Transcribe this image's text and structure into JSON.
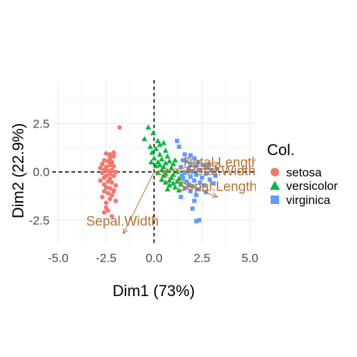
{
  "chart_data": {
    "type": "scatter",
    "xlabel": "Dim1 (73%)",
    "ylabel": "Dim2 (22.9%)",
    "xlim": [
      -5.3,
      5.3
    ],
    "ylim": [
      -3.75,
      4.75
    ],
    "x_ticks": [
      -5.0,
      -2.5,
      0.0,
      2.5,
      5.0
    ],
    "x_tick_labels": [
      "-5.0",
      "-2.5",
      "0.0",
      "2.5",
      "5.0"
    ],
    "y_ticks": [
      -2.5,
      0.0,
      2.5
    ],
    "y_tick_labels": [
      "-2.5",
      "0.0",
      "2.5"
    ],
    "grid": true,
    "reference_lines": {
      "x": 0,
      "y": 0,
      "style": "dashed"
    },
    "legend": {
      "title": "Col.",
      "placement": "right",
      "entries": [
        {
          "label": "setosa",
          "shape": "circle",
          "color": "#F8766D"
        },
        {
          "label": "versicolor",
          "shape": "triangle",
          "color": "#00BA38"
        },
        {
          "label": "virginica",
          "shape": "square",
          "color": "#619CFF"
        }
      ]
    },
    "series": [
      {
        "name": "setosa",
        "shape": "circle",
        "color": "#F8766D",
        "points": [
          [
            -1.8,
            2.3
          ],
          [
            -2.1,
            1.0
          ],
          [
            -2.3,
            0.9
          ],
          [
            -2.5,
            0.95
          ],
          [
            -2.3,
            0.75
          ],
          [
            -2.1,
            0.8
          ],
          [
            -2.6,
            0.6
          ],
          [
            -2.4,
            0.55
          ],
          [
            -2.2,
            0.5
          ],
          [
            -2.7,
            0.4
          ],
          [
            -2.3,
            0.35
          ],
          [
            -2.5,
            0.25
          ],
          [
            -2.1,
            0.3
          ],
          [
            -2.8,
            0.2
          ],
          [
            -2.6,
            0.1
          ],
          [
            -2.2,
            0.1
          ],
          [
            -2.4,
            0.05
          ],
          [
            -2.0,
            0.0
          ],
          [
            -2.7,
            -0.05
          ],
          [
            -2.3,
            -0.1
          ],
          [
            -2.5,
            -0.2
          ],
          [
            -2.1,
            -0.2
          ],
          [
            -2.6,
            -0.3
          ],
          [
            -2.3,
            -0.35
          ],
          [
            -2.8,
            -0.45
          ],
          [
            -2.4,
            -0.5
          ],
          [
            -2.2,
            -0.55
          ],
          [
            -2.6,
            -0.65
          ],
          [
            -2.0,
            -0.7
          ],
          [
            -2.5,
            -0.8
          ],
          [
            -2.3,
            -0.85
          ],
          [
            -2.1,
            -0.95
          ],
          [
            -2.6,
            -1.0
          ],
          [
            -2.4,
            -1.1
          ],
          [
            -2.2,
            -1.2
          ],
          [
            -2.7,
            -1.3
          ],
          [
            -2.3,
            -1.4
          ],
          [
            -2.0,
            -1.5
          ],
          [
            -2.5,
            -1.6
          ],
          [
            -2.4,
            -2.0
          ],
          [
            -2.6,
            -2.1
          ],
          [
            -2.2,
            -2.3
          ],
          [
            -2.5,
            -1.85
          ],
          [
            -2.1,
            -1.0
          ],
          [
            -2.3,
            0.6
          ]
        ]
      },
      {
        "name": "versicolor",
        "shape": "triangle",
        "color": "#00BA38",
        "points": [
          [
            -0.3,
            2.3
          ],
          [
            -0.05,
            2.0
          ],
          [
            -0.5,
            1.7
          ],
          [
            0.2,
            1.6
          ],
          [
            0.5,
            1.5
          ],
          [
            -0.2,
            1.3
          ],
          [
            0.1,
            1.2
          ],
          [
            0.6,
            1.1
          ],
          [
            -0.1,
            1.0
          ],
          [
            0.3,
            0.9
          ],
          [
            0.7,
            0.8
          ],
          [
            0.0,
            0.7
          ],
          [
            0.4,
            0.65
          ],
          [
            0.8,
            0.55
          ],
          [
            0.2,
            0.5
          ],
          [
            0.6,
            0.45
          ],
          [
            1.0,
            0.4
          ],
          [
            0.3,
            0.35
          ],
          [
            0.1,
            0.3
          ],
          [
            0.5,
            0.25
          ],
          [
            0.9,
            0.2
          ],
          [
            0.4,
            0.1
          ],
          [
            0.7,
            0.05
          ],
          [
            1.2,
            0.0
          ],
          [
            0.2,
            -0.05
          ],
          [
            0.6,
            -0.1
          ],
          [
            1.0,
            -0.15
          ],
          [
            0.5,
            -0.2
          ],
          [
            0.9,
            -0.3
          ],
          [
            1.3,
            -0.35
          ],
          [
            0.4,
            -0.4
          ],
          [
            0.8,
            -0.45
          ],
          [
            1.2,
            -0.5
          ],
          [
            0.6,
            -0.55
          ],
          [
            1.0,
            -0.6
          ],
          [
            1.4,
            -0.65
          ],
          [
            0.8,
            -0.7
          ],
          [
            1.1,
            -0.8
          ],
          [
            0.7,
            -0.9
          ],
          [
            1.3,
            -0.95
          ],
          [
            0.9,
            -0.3
          ],
          [
            1.1,
            0.6
          ],
          [
            1.5,
            -0.2
          ],
          [
            0.3,
            1.4
          ],
          [
            -0.15,
            0.5
          ]
        ]
      },
      {
        "name": "virginica",
        "shape": "square",
        "color": "#619CFF",
        "points": [
          [
            1.2,
            1.6
          ],
          [
            1.3,
            1.3
          ],
          [
            1.6,
            0.9
          ],
          [
            1.9,
            0.85
          ],
          [
            2.1,
            0.7
          ],
          [
            1.5,
            0.6
          ],
          [
            1.7,
            0.55
          ],
          [
            2.3,
            0.5
          ],
          [
            1.9,
            0.4
          ],
          [
            2.6,
            0.35
          ],
          [
            2.2,
            0.3
          ],
          [
            1.4,
            0.25
          ],
          [
            2.8,
            0.2
          ],
          [
            1.8,
            0.15
          ],
          [
            2.4,
            0.1
          ],
          [
            3.0,
            0.05
          ],
          [
            2.0,
            0.0
          ],
          [
            1.6,
            -0.05
          ],
          [
            2.7,
            -0.1
          ],
          [
            2.2,
            -0.15
          ],
          [
            3.2,
            -0.2
          ],
          [
            1.9,
            -0.25
          ],
          [
            2.5,
            -0.3
          ],
          [
            1.5,
            -0.35
          ],
          [
            2.9,
            -0.4
          ],
          [
            2.1,
            -0.45
          ],
          [
            1.7,
            -0.5
          ],
          [
            2.4,
            -0.55
          ],
          [
            3.1,
            -0.6
          ],
          [
            1.8,
            -0.65
          ],
          [
            2.6,
            -0.7
          ],
          [
            2.0,
            -0.75
          ],
          [
            1.6,
            -0.85
          ],
          [
            2.3,
            -0.9
          ],
          [
            1.9,
            -1.0
          ],
          [
            2.7,
            -1.05
          ],
          [
            2.2,
            -1.2
          ],
          [
            1.4,
            -1.3
          ],
          [
            2.1,
            -1.5
          ],
          [
            2.0,
            -1.9
          ],
          [
            2.2,
            -2.55
          ],
          [
            2.35,
            -2.5
          ],
          [
            1.45,
            -0.2
          ],
          [
            2.85,
            0.4
          ],
          [
            3.3,
            0.15
          ]
        ]
      }
    ],
    "variables": [
      {
        "name": "Petal.Length",
        "x": 3.4,
        "y": 0.45,
        "color": "#B87333"
      },
      {
        "name": "Petal.Width",
        "x": 3.35,
        "y": 0.2,
        "color": "#B87333"
      },
      {
        "name": "Sepal.Length",
        "x": 3.3,
        "y": -1.3,
        "color": "#B87333"
      },
      {
        "name": "Sepal.Width",
        "x": -1.6,
        "y": -3.2,
        "color": "#B87333"
      }
    ],
    "variable_labels": [
      {
        "text": "Petal.Length",
        "x": 3.5,
        "y": 0.45
      },
      {
        "text": "Petal.Width",
        "x": 3.5,
        "y": 0.0
      },
      {
        "text": "Sepal.Length",
        "x": 3.3,
        "y": -0.8
      },
      {
        "text": "Sepal.Width",
        "x": -1.65,
        "y": -2.6
      }
    ]
  }
}
